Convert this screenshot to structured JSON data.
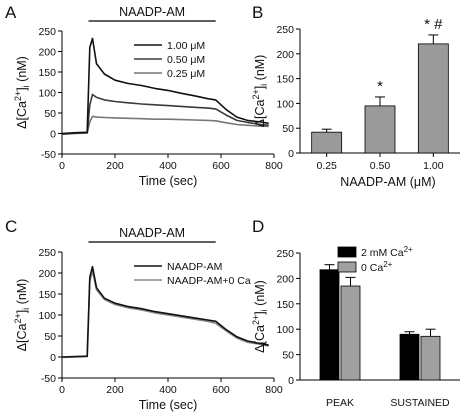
{
  "chart_data": [
    {
      "panel": "A",
      "type": "line",
      "xlabel": "Time (sec)",
      "ylabel": "Δ[Ca2+]i (nM)",
      "xlim": [
        0,
        800
      ],
      "ylim": [
        -50,
        250
      ],
      "xticks": [
        0,
        200,
        400,
        600,
        800
      ],
      "yticks": [
        -50,
        0,
        50,
        100,
        150,
        200,
        250
      ],
      "xtick_labels": [
        "0",
        "200",
        "400",
        "600",
        "800"
      ],
      "ytick_labels": [
        "-50",
        "0",
        "50",
        "100",
        "150",
        "200",
        "250"
      ],
      "bar_label": "NAADP-AM",
      "bar_range": [
        100,
        580
      ],
      "legend_position": "upper-right",
      "series": [
        {
          "name": "1.00 μM",
          "color": "#111111",
          "x": [
            0,
            50,
            95,
            105,
            115,
            130,
            160,
            200,
            250,
            300,
            350,
            400,
            450,
            500,
            550,
            580,
            620,
            660,
            700,
            750,
            780
          ],
          "y": [
            0,
            2,
            3,
            210,
            232,
            170,
            145,
            130,
            122,
            117,
            110,
            105,
            98,
            92,
            85,
            82,
            58,
            40,
            32,
            28,
            25
          ]
        },
        {
          "name": "0.50 μM",
          "color": "#3a3a3a",
          "x": [
            0,
            50,
            95,
            105,
            115,
            130,
            160,
            200,
            250,
            300,
            350,
            400,
            450,
            500,
            550,
            580,
            620,
            660,
            700,
            750,
            780
          ],
          "y": [
            -1,
            1,
            2,
            70,
            95,
            88,
            82,
            78,
            75,
            72,
            70,
            68,
            66,
            64,
            62,
            60,
            45,
            32,
            27,
            22,
            20
          ]
        },
        {
          "name": "0.25 μM",
          "color": "#777777",
          "x": [
            0,
            50,
            95,
            105,
            115,
            130,
            160,
            200,
            250,
            300,
            350,
            400,
            450,
            500,
            550,
            580,
            620,
            660,
            700,
            750,
            780
          ],
          "y": [
            -2,
            0,
            1,
            28,
            42,
            40,
            39,
            38,
            37,
            36,
            35,
            35,
            34,
            33,
            32,
            31,
            26,
            22,
            20,
            18,
            17
          ]
        }
      ]
    },
    {
      "panel": "B",
      "type": "bar",
      "xlabel": "NAADP-AM (μM)",
      "ylabel": "Δ[Ca2+]i (nM)",
      "ylim": [
        0,
        250
      ],
      "yticks": [
        0,
        50,
        100,
        150,
        200,
        250
      ],
      "ytick_labels": [
        "0",
        "50",
        "100",
        "150",
        "200",
        "250"
      ],
      "categories": [
        "0.25",
        "0.50",
        "1.00"
      ],
      "values": [
        42,
        95,
        220
      ],
      "errors": [
        6,
        18,
        18
      ],
      "annotations": [
        "",
        "*",
        "* #"
      ],
      "bar_color": "#9a9a9a"
    },
    {
      "panel": "C",
      "type": "line",
      "xlabel": "Time (sec)",
      "ylabel": "Δ[Ca2+]i (nM)",
      "xlim": [
        0,
        800
      ],
      "ylim": [
        -50,
        250
      ],
      "xticks": [
        0,
        200,
        400,
        600,
        800
      ],
      "yticks": [
        -50,
        0,
        50,
        100,
        150,
        200,
        250
      ],
      "xtick_labels": [
        "0",
        "200",
        "400",
        "600",
        "800"
      ],
      "ytick_labels": [
        "-50",
        "0",
        "50",
        "100",
        "150",
        "200",
        "250"
      ],
      "bar_label": "NAADP-AM",
      "bar_range": [
        100,
        580
      ],
      "legend_position": "upper-right",
      "series": [
        {
          "name": "NAADP-AM",
          "color": "#111111",
          "x": [
            0,
            50,
            95,
            105,
            115,
            130,
            160,
            200,
            250,
            300,
            350,
            400,
            450,
            500,
            550,
            580,
            620,
            660,
            700,
            750,
            780
          ],
          "y": [
            0,
            1,
            2,
            190,
            215,
            165,
            140,
            128,
            120,
            115,
            108,
            103,
            98,
            93,
            88,
            85,
            65,
            48,
            38,
            32,
            28
          ]
        },
        {
          "name": "NAADP-AM+0 Ca",
          "color": "#888888",
          "x": [
            0,
            50,
            95,
            105,
            115,
            130,
            160,
            200,
            250,
            300,
            350,
            400,
            450,
            500,
            550,
            580,
            620,
            660,
            700,
            750,
            780
          ],
          "y": [
            -1,
            0,
            1,
            180,
            205,
            160,
            137,
            125,
            117,
            112,
            105,
            100,
            95,
            90,
            85,
            80,
            62,
            45,
            35,
            30,
            26
          ]
        }
      ]
    },
    {
      "panel": "D",
      "type": "bar",
      "ylabel": "Δ[Ca2+]i (nM)",
      "ylim": [
        0,
        250
      ],
      "yticks": [
        0,
        50,
        100,
        150,
        200,
        250
      ],
      "ytick_labels": [
        "0",
        "50",
        "100",
        "150",
        "200",
        "250"
      ],
      "categories": [
        "PEAK",
        "SUSTAINED"
      ],
      "legend_position": "top",
      "series": [
        {
          "name": "2 mM Ca2+",
          "color": "#000000",
          "values": [
            217,
            90
          ],
          "errors": [
            10,
            5
          ]
        },
        {
          "name": "0 Ca2+",
          "color": "#a0a0a0",
          "values": [
            185,
            86
          ],
          "errors": [
            17,
            14
          ]
        }
      ]
    }
  ]
}
